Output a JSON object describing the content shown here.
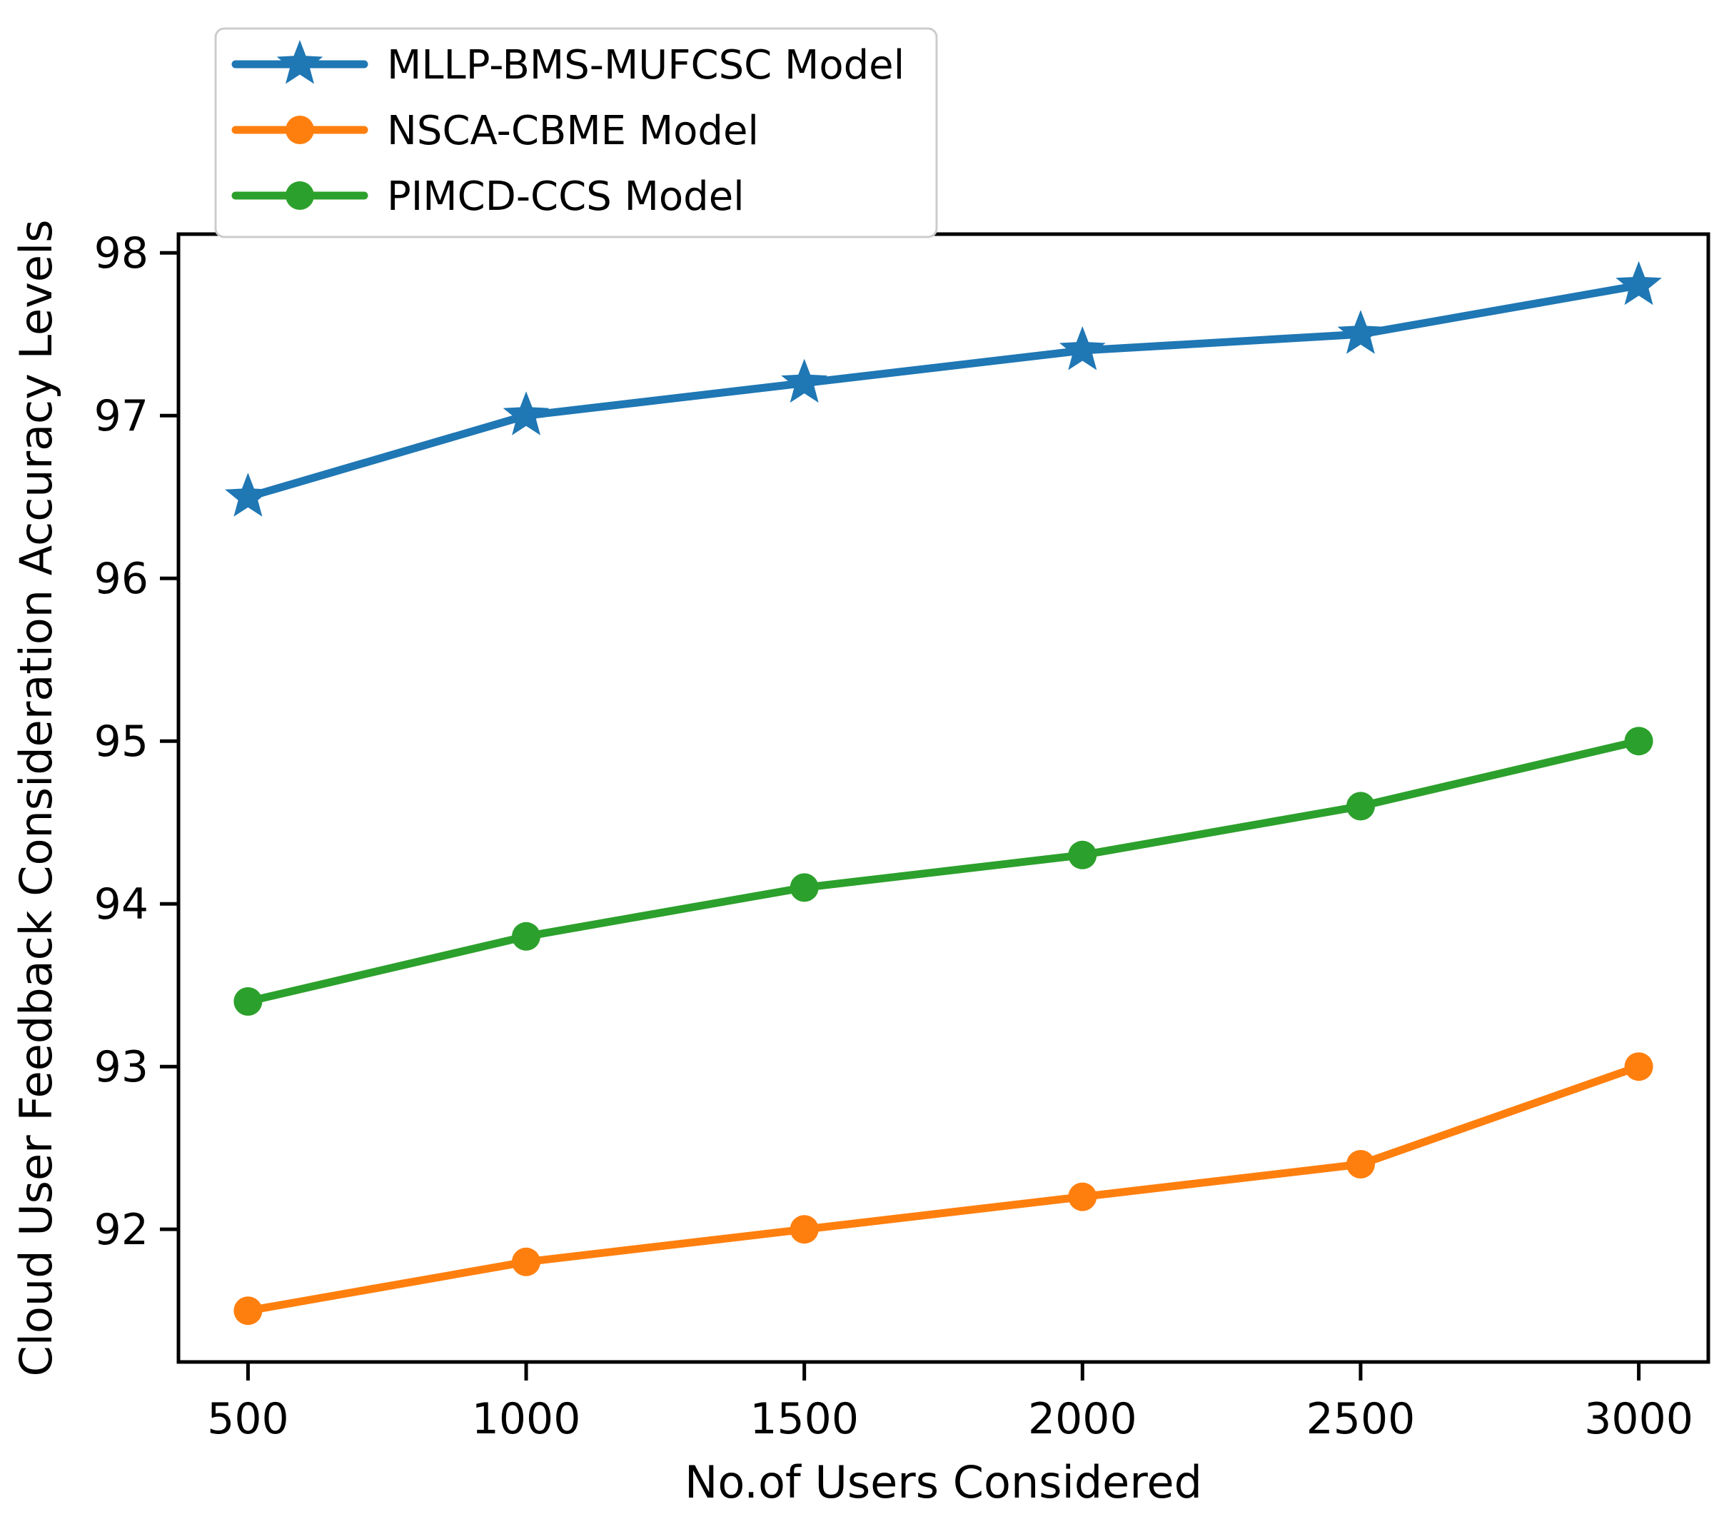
{
  "chart_data": {
    "type": "line",
    "title": "",
    "xlabel": "No.of Users Considered",
    "ylabel": "Cloud User Feedback Consideration Accuracy Levels",
    "x": [
      500,
      1000,
      1500,
      2000,
      2500,
      3000
    ],
    "xticks": [
      500,
      1000,
      1500,
      2000,
      2500,
      3000
    ],
    "yticks": [
      92,
      93,
      94,
      95,
      96,
      97,
      98
    ],
    "xlim": [
      375,
      3125
    ],
    "ylim": [
      91.185,
      98.115
    ],
    "grid": false,
    "legend_position": "upper left",
    "axis_color": "#000000",
    "legend_border_color": "#cccccc",
    "legend_background": "#ffffff",
    "series": [
      {
        "name": "MLLP-BMS-MUFCSC Model",
        "color": "#1f77b4",
        "marker": "star",
        "values": [
          96.5,
          97.0,
          97.2,
          97.4,
          97.5,
          97.8
        ]
      },
      {
        "name": "NSCA-CBME Model",
        "color": "#ff7f0e",
        "marker": "circle",
        "values": [
          91.5,
          91.8,
          92.0,
          92.2,
          92.4,
          93.0
        ]
      },
      {
        "name": "PIMCD-CCS Model",
        "color": "#2ca02c",
        "marker": "circle",
        "values": [
          93.4,
          93.8,
          94.1,
          94.3,
          94.6,
          95.0
        ]
      }
    ]
  }
}
